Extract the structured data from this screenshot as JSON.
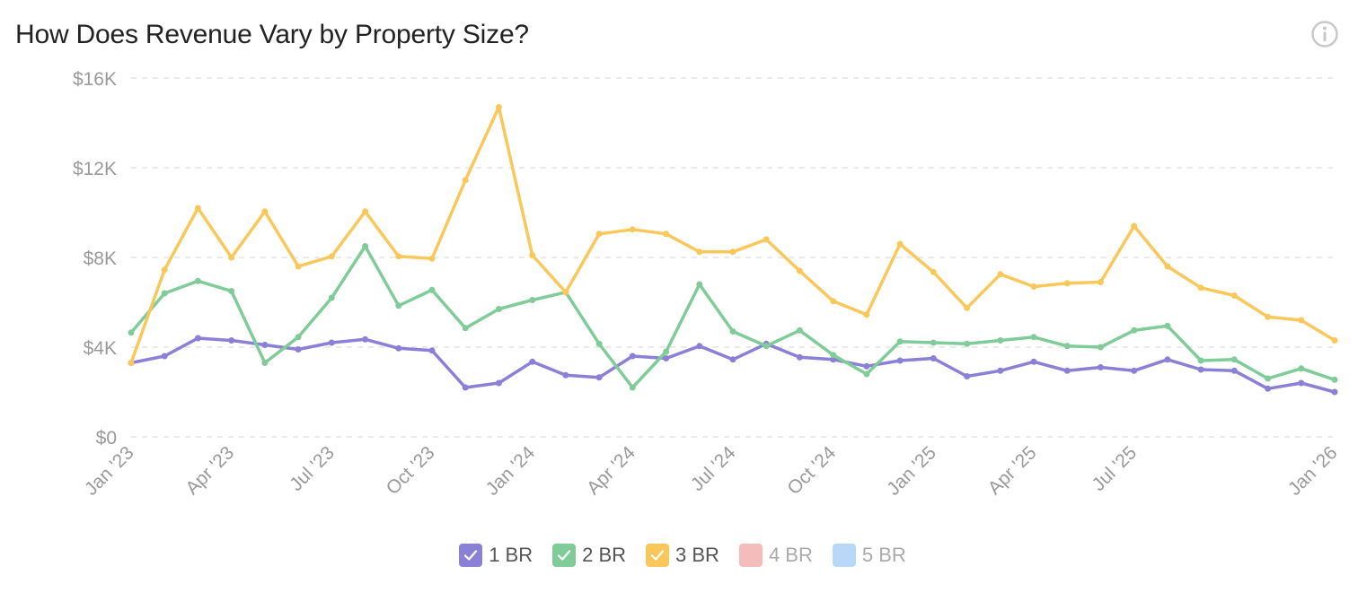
{
  "header": {
    "title": "How Does Revenue Vary by Property Size?",
    "info_icon": "info-circle-icon"
  },
  "colors": {
    "1br": "#8a80d8",
    "2br": "#7fcc99",
    "3br": "#fac85a",
    "4br": "#f5bcbc",
    "5br": "#b8d8f8",
    "grid": "#e4e4e4"
  },
  "legend": [
    {
      "label": "1 BR",
      "checked": true,
      "color": "#8a80d8"
    },
    {
      "label": "2 BR",
      "checked": true,
      "color": "#7fcc99"
    },
    {
      "label": "3 BR",
      "checked": true,
      "color": "#fac85a"
    },
    {
      "label": "4 BR",
      "checked": false,
      "color": "#f5bcbc"
    },
    {
      "label": "5 BR",
      "checked": false,
      "color": "#b8d8f8"
    }
  ],
  "chart_data": {
    "type": "line",
    "title": "How Does Revenue Vary by Property Size?",
    "xlabel": "",
    "ylabel": "",
    "ylim": [
      0,
      16000
    ],
    "y_ticks": [
      {
        "value": 0,
        "label": "$0"
      },
      {
        "value": 4000,
        "label": "$4K"
      },
      {
        "value": 8000,
        "label": "$8K"
      },
      {
        "value": 12000,
        "label": "$12K"
      },
      {
        "value": 16000,
        "label": "$16K"
      }
    ],
    "x_ticks": [
      {
        "index": 0,
        "label": "Jan '23"
      },
      {
        "index": 3,
        "label": "Apr '23"
      },
      {
        "index": 6,
        "label": "Jul '23"
      },
      {
        "index": 9,
        "label": "Oct '23"
      },
      {
        "index": 12,
        "label": "Jan '24"
      },
      {
        "index": 15,
        "label": "Apr '24"
      },
      {
        "index": 18,
        "label": "Jul '24"
      },
      {
        "index": 21,
        "label": "Oct '24"
      },
      {
        "index": 24,
        "label": "Jan '25"
      },
      {
        "index": 27,
        "label": "Apr '25"
      },
      {
        "index": 30,
        "label": "Jul '25"
      },
      {
        "index": 36,
        "label": "Jan '26"
      }
    ],
    "point_count": 37,
    "grid": true,
    "legend_position": "bottom-center",
    "series": [
      {
        "name": "1 BR",
        "color": "#8a80d8",
        "values": [
          3300,
          3600,
          4400,
          4300,
          4100,
          3900,
          4200,
          4350,
          3950,
          3850,
          2200,
          2400,
          3350,
          2750,
          2650,
          3600,
          3500,
          4050,
          3450,
          4150,
          3550,
          3450,
          3150,
          3400,
          3500,
          2700,
          2950,
          3350,
          2950,
          3100,
          2950,
          3450,
          3000,
          2950,
          2150,
          2400,
          2000
        ]
      },
      {
        "name": "2 BR",
        "color": "#7fcc99",
        "values": [
          4650,
          6400,
          6950,
          6500,
          3300,
          4450,
          6200,
          8500,
          5850,
          6550,
          4850,
          5700,
          6100,
          6450,
          4150,
          2200,
          3800,
          6800,
          4700,
          4050,
          4750,
          3650,
          2800,
          4250,
          4200,
          4150,
          4300,
          4450,
          4050,
          4000,
          4750,
          4950,
          3400,
          3450,
          2600,
          3050,
          2550
        ]
      },
      {
        "name": "3 BR",
        "color": "#fac85a",
        "values": [
          3300,
          7450,
          10200,
          8000,
          10050,
          7600,
          8050,
          10050,
          8050,
          7950,
          11450,
          14700,
          8100,
          6450,
          9050,
          9250,
          9050,
          8250,
          8250,
          8800,
          7400,
          6050,
          5450,
          8600,
          7350,
          5750,
          7250,
          6700,
          6850,
          6900,
          9400,
          7600,
          6650,
          6300,
          5350,
          5200,
          4300
        ]
      },
      {
        "name": "4 BR",
        "color": "#f5bcbc",
        "values": [],
        "hidden": true
      },
      {
        "name": "5 BR",
        "color": "#b8d8f8",
        "values": [],
        "hidden": true
      }
    ]
  }
}
